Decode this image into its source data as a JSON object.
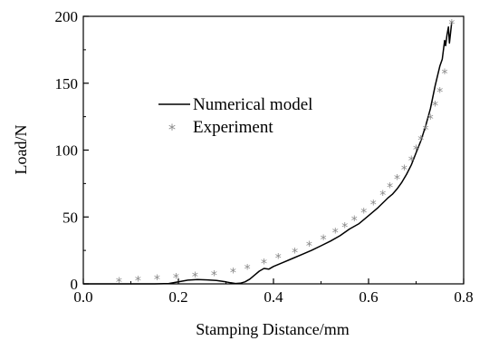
{
  "chart_data": {
    "type": "line",
    "xlabel": "Stamping Distance/mm",
    "ylabel": "Load/N",
    "xlim": [
      0.0,
      0.8
    ],
    "ylim": [
      0,
      200
    ],
    "x_ticks": [
      "0.0",
      "0.2",
      "0.4",
      "0.6",
      "0.8"
    ],
    "y_ticks": [
      "0",
      "50",
      "100",
      "150",
      "200"
    ],
    "grid": false,
    "legend_position": "center-left",
    "series": [
      {
        "name": "Numerical model",
        "style": "line",
        "color": "#000000",
        "x": [
          0.0,
          0.1,
          0.15,
          0.18,
          0.2,
          0.22,
          0.24,
          0.26,
          0.28,
          0.3,
          0.31,
          0.32,
          0.33,
          0.34,
          0.35,
          0.36,
          0.37,
          0.38,
          0.39,
          0.4,
          0.42,
          0.44,
          0.46,
          0.48,
          0.5,
          0.52,
          0.54,
          0.56,
          0.58,
          0.6,
          0.62,
          0.64,
          0.65,
          0.66,
          0.67,
          0.68,
          0.69,
          0.7,
          0.71,
          0.72,
          0.73,
          0.74,
          0.75,
          0.755,
          0.76,
          0.762,
          0.765,
          0.768,
          0.77,
          0.775
        ],
        "values": [
          0,
          0,
          0,
          0.3,
          1.5,
          2.8,
          3.2,
          3.0,
          2.5,
          1.5,
          0.8,
          0.3,
          0.5,
          1.5,
          3.5,
          6.5,
          9.5,
          11.5,
          11.0,
          13.0,
          16.0,
          19.0,
          22.0,
          25.0,
          28.5,
          32.0,
          36.0,
          41.0,
          45.0,
          51.0,
          57.0,
          64.0,
          67.0,
          71.0,
          76.0,
          82.0,
          89.0,
          98.0,
          107.0,
          118.0,
          131.0,
          148.0,
          163.0,
          168.0,
          182.0,
          178.0,
          186.0,
          192.0,
          180.0,
          196.0
        ]
      },
      {
        "name": "Experiment",
        "style": "marker",
        "marker": "*",
        "color": "#888888",
        "x": [
          0.075,
          0.115,
          0.155,
          0.195,
          0.235,
          0.275,
          0.315,
          0.345,
          0.38,
          0.41,
          0.445,
          0.475,
          0.505,
          0.53,
          0.55,
          0.57,
          0.59,
          0.61,
          0.63,
          0.645,
          0.66,
          0.675,
          0.69,
          0.7,
          0.71,
          0.72,
          0.73,
          0.74,
          0.75,
          0.76,
          0.775
        ],
        "values": [
          2,
          3,
          4,
          5,
          6,
          7,
          9,
          12,
          16,
          20,
          24,
          29,
          34,
          39,
          43,
          48,
          54,
          60,
          67,
          73,
          79,
          86,
          93,
          101,
          108,
          116,
          124,
          134,
          144,
          158,
          195
        ]
      }
    ]
  }
}
